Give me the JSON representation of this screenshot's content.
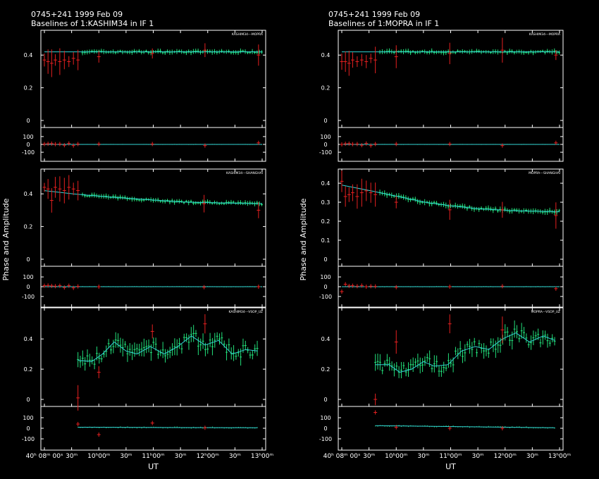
{
  "chart_data": [
    {
      "type": "scatter",
      "title_line1": "0745+241  1999 Feb 09",
      "title_line2": "Baselines of 1:KASHIM34 in IF 1",
      "ylabel": "Phase and Amplitude",
      "xlabel": "UT",
      "x_ticks": [
        "40ʰ 08ᵐ 00ˢ",
        "30ᵐ",
        "10ʰ00ᵐ",
        "30ᵐ",
        "11ʰ00ᵐ",
        "30ᵐ",
        "12ʰ00ᵐ",
        "30ᵐ",
        "13ʰ00ᵐ"
      ],
      "x_tick_raw": [
        "40h08m00s",
        "30m",
        "10h00m",
        "30m",
        "11h00m",
        "30m",
        "12h00m",
        "30m",
        "13h00m"
      ],
      "xlim_minutes": [
        548,
        788
      ],
      "baselines": [
        {
          "name": "KASHIM34---MOPRA",
          "amp_ylim": [
            0,
            0.5
          ],
          "amp_ticks": [
            "0.4",
            "0.2",
            "0"
          ],
          "phase_ticks": [
            "100",
            "0",
            "-100"
          ],
          "model_amp": [
            [
              548,
              0.42
            ],
            [
              560,
              0.42
            ],
            [
              600,
              0.42
            ],
            [
              700,
              0.42
            ],
            [
              788,
              0.42
            ]
          ],
          "model_phase": [
            [
              548,
              0
            ],
            [
              788,
              0
            ]
          ],
          "flagged_amp": [
            [
              548,
              0.37
            ],
            [
              552,
              0.36
            ],
            [
              556,
              0.35
            ],
            [
              560,
              0.37
            ],
            [
              565,
              0.36
            ],
            [
              570,
              0.37
            ],
            [
              575,
              0.36
            ],
            [
              580,
              0.38
            ],
            [
              585,
              0.37
            ],
            [
              608,
              0.39
            ],
            [
              667,
              0.41
            ],
            [
              725,
              0.43
            ],
            [
              784,
              0.4
            ]
          ],
          "good_amp_start": 590,
          "good_amp_level": 0.42,
          "flagged_phase": [
            [
              548,
              5
            ],
            [
              552,
              8
            ],
            [
              556,
              10
            ],
            [
              560,
              3
            ],
            [
              565,
              5
            ],
            [
              570,
              -10
            ],
            [
              575,
              12
            ],
            [
              580,
              -15
            ],
            [
              585,
              5
            ],
            [
              608,
              5
            ],
            [
              667,
              5
            ],
            [
              725,
              -15
            ],
            [
              784,
              20
            ]
          ]
        },
        {
          "name": "KASHIM34---SHANGHAI",
          "amp_ylim": [
            0,
            0.5
          ],
          "amp_ticks": [
            "0.4",
            "0.2",
            "0"
          ],
          "phase_ticks": [
            "100",
            "0",
            "-100"
          ],
          "model_amp": [
            [
              548,
              0.42
            ],
            [
              580,
              0.4
            ],
            [
              620,
              0.38
            ],
            [
              660,
              0.365
            ],
            [
              700,
              0.35
            ],
            [
              740,
              0.345
            ],
            [
              788,
              0.34
            ]
          ],
          "model_phase": [
            [
              548,
              0
            ],
            [
              788,
              0
            ]
          ],
          "flagged_amp": [
            [
              548,
              0.44
            ],
            [
              552,
              0.43
            ],
            [
              556,
              0.36
            ],
            [
              560,
              0.44
            ],
            [
              565,
              0.43
            ],
            [
              570,
              0.42
            ],
            [
              575,
              0.44
            ],
            [
              580,
              0.43
            ],
            [
              585,
              0.42
            ],
            [
              724,
              0.34
            ],
            [
              784,
              0.3
            ]
          ],
          "good_amp_start": 590,
          "flagged_phase": [
            [
              548,
              10
            ],
            [
              552,
              12
            ],
            [
              556,
              8
            ],
            [
              560,
              5
            ],
            [
              565,
              10
            ],
            [
              570,
              -8
            ],
            [
              575,
              10
            ],
            [
              580,
              -12
            ],
            [
              585,
              3
            ],
            [
              608,
              0
            ],
            [
              724,
              -5
            ],
            [
              784,
              0
            ]
          ]
        },
        {
          "name": "KASHIM34---VSOP_UZ",
          "amp_ylim": [
            0,
            0.55
          ],
          "amp_ticks": [
            "0.4",
            "0.2",
            "0"
          ],
          "phase_ticks": [
            "100",
            "0",
            "-100"
          ],
          "model_amp": [
            [
              585,
              0.26
            ],
            [
              600,
              0.25
            ],
            [
              612,
              0.3
            ],
            [
              625,
              0.38
            ],
            [
              638,
              0.32
            ],
            [
              650,
              0.3
            ],
            [
              665,
              0.35
            ],
            [
              680,
              0.3
            ],
            [
              695,
              0.35
            ],
            [
              710,
              0.42
            ],
            [
              725,
              0.36
            ],
            [
              740,
              0.39
            ],
            [
              755,
              0.3
            ],
            [
              770,
              0.33
            ],
            [
              783,
              0.32
            ]
          ],
          "model_phase": [
            [
              585,
              10
            ],
            [
              783,
              5
            ]
          ],
          "flagged_amp": [
            [
              585,
              0.01
            ],
            [
              608,
              0.18
            ],
            [
              667,
              0.45
            ],
            [
              725,
              0.5
            ]
          ],
          "flagged_phase": [
            [
              585,
              40
            ],
            [
              608,
              -60
            ],
            [
              667,
              50
            ],
            [
              725,
              5
            ]
          ]
        }
      ]
    },
    {
      "type": "scatter",
      "title_line1": "0745+241  1999 Feb 09",
      "title_line2": "Baselines of 1:MOPRA in IF 1",
      "ylabel": "Phase and Amplitude",
      "xlabel": "UT",
      "x_ticks": [
        "40ʰ 08ᵐ 00ˢ",
        "30ᵐ",
        "10ʰ00ᵐ",
        "30ᵐ",
        "11ʰ00ᵐ",
        "30ᵐ",
        "12ʰ00ᵐ",
        "30ᵐ",
        "13ʰ00ᵐ"
      ],
      "x_tick_raw": [
        "40h08m00s",
        "30m",
        "10h00m",
        "30m",
        "11h00m",
        "30m",
        "12h00m",
        "30m",
        "13h00m"
      ],
      "xlim_minutes": [
        548,
        788
      ],
      "baselines": [
        {
          "name": "KASHIM34---MOPRA",
          "amp_ylim": [
            0,
            0.5
          ],
          "amp_ticks": [
            "0.4",
            "0.2",
            "0"
          ],
          "phase_ticks": [
            "100",
            "0",
            "-100"
          ],
          "model_amp": [
            [
              548,
              0.42
            ],
            [
              788,
              0.42
            ]
          ],
          "model_phase": [
            [
              548,
              0
            ],
            [
              788,
              0
            ]
          ],
          "flagged_amp": [
            [
              548,
              0.36
            ],
            [
              552,
              0.36
            ],
            [
              556,
              0.35
            ],
            [
              560,
              0.37
            ],
            [
              565,
              0.36
            ],
            [
              570,
              0.37
            ],
            [
              575,
              0.36
            ],
            [
              580,
              0.38
            ],
            [
              585,
              0.37
            ],
            [
              608,
              0.39
            ],
            [
              667,
              0.41
            ],
            [
              725,
              0.43
            ],
            [
              784,
              0.4
            ]
          ],
          "good_amp_start": 590,
          "good_amp_level": 0.42,
          "flagged_phase": [
            [
              548,
              0
            ],
            [
              552,
              8
            ],
            [
              556,
              10
            ],
            [
              560,
              3
            ],
            [
              565,
              5
            ],
            [
              570,
              -10
            ],
            [
              575,
              12
            ],
            [
              580,
              -15
            ],
            [
              585,
              5
            ],
            [
              608,
              5
            ],
            [
              667,
              5
            ],
            [
              725,
              -15
            ],
            [
              784,
              20
            ]
          ]
        },
        {
          "name": "MOPRA---SHANGHAI",
          "amp_ylim": [
            0,
            0.43
          ],
          "amp_ticks": [
            "0.4",
            "0.3",
            "0.2",
            "0.1",
            "0"
          ],
          "phase_ticks": [
            "100",
            "0",
            "-100"
          ],
          "model_amp": [
            [
              548,
              0.39
            ],
            [
              580,
              0.36
            ],
            [
              610,
              0.33
            ],
            [
              640,
              0.3
            ],
            [
              670,
              0.28
            ],
            [
              700,
              0.265
            ],
            [
              740,
              0.255
            ],
            [
              788,
              0.25
            ]
          ],
          "model_phase": [
            [
              548,
              0
            ],
            [
              788,
              0
            ]
          ],
          "flagged_amp": [
            [
              548,
              0.41
            ],
            [
              552,
              0.33
            ],
            [
              556,
              0.34
            ],
            [
              560,
              0.35
            ],
            [
              565,
              0.33
            ],
            [
              570,
              0.35
            ],
            [
              575,
              0.36
            ],
            [
              580,
              0.35
            ],
            [
              585,
              0.34
            ],
            [
              608,
              0.3
            ],
            [
              667,
              0.26
            ],
            [
              725,
              0.26
            ],
            [
              784,
              0.23
            ]
          ],
          "good_amp_start": 590,
          "flagged_phase": [
            [
              548,
              -50
            ],
            [
              552,
              25
            ],
            [
              556,
              8
            ],
            [
              560,
              10
            ],
            [
              565,
              5
            ],
            [
              570,
              12
            ],
            [
              575,
              0
            ],
            [
              580,
              5
            ],
            [
              585,
              3
            ],
            [
              608,
              -5
            ],
            [
              667,
              0
            ],
            [
              725,
              5
            ],
            [
              784,
              -20
            ]
          ]
        },
        {
          "name": "MOPRA---VSOP_UZ",
          "amp_ylim": [
            0,
            0.55
          ],
          "amp_ticks": [
            "0.4",
            "0.2",
            "0"
          ],
          "phase_ticks": [
            "100",
            "0",
            "-100"
          ],
          "model_amp": [
            [
              585,
              0.23
            ],
            [
              600,
              0.23
            ],
            [
              612,
              0.18
            ],
            [
              625,
              0.2
            ],
            [
              638,
              0.25
            ],
            [
              650,
              0.22
            ],
            [
              665,
              0.23
            ],
            [
              680,
              0.32
            ],
            [
              695,
              0.35
            ],
            [
              710,
              0.33
            ],
            [
              725,
              0.4
            ],
            [
              740,
              0.44
            ],
            [
              755,
              0.38
            ],
            [
              770,
              0.42
            ],
            [
              783,
              0.39
            ]
          ],
          "model_phase": [
            [
              585,
              25
            ],
            [
              783,
              5
            ]
          ],
          "flagged_amp": [
            [
              585,
              0.0
            ],
            [
              608,
              0.38
            ],
            [
              667,
              0.5
            ],
            [
              725,
              0.46
            ]
          ],
          "flagged_phase": [
            [
              585,
              150
            ],
            [
              608,
              10
            ],
            [
              667,
              0
            ],
            [
              725,
              0
            ]
          ]
        }
      ]
    }
  ],
  "colors": {
    "background": "#000000",
    "axis": "#ffffff",
    "good_points": "#22e07a",
    "flagged_points": "#e62020",
    "model_line": "#33d5d5"
  }
}
